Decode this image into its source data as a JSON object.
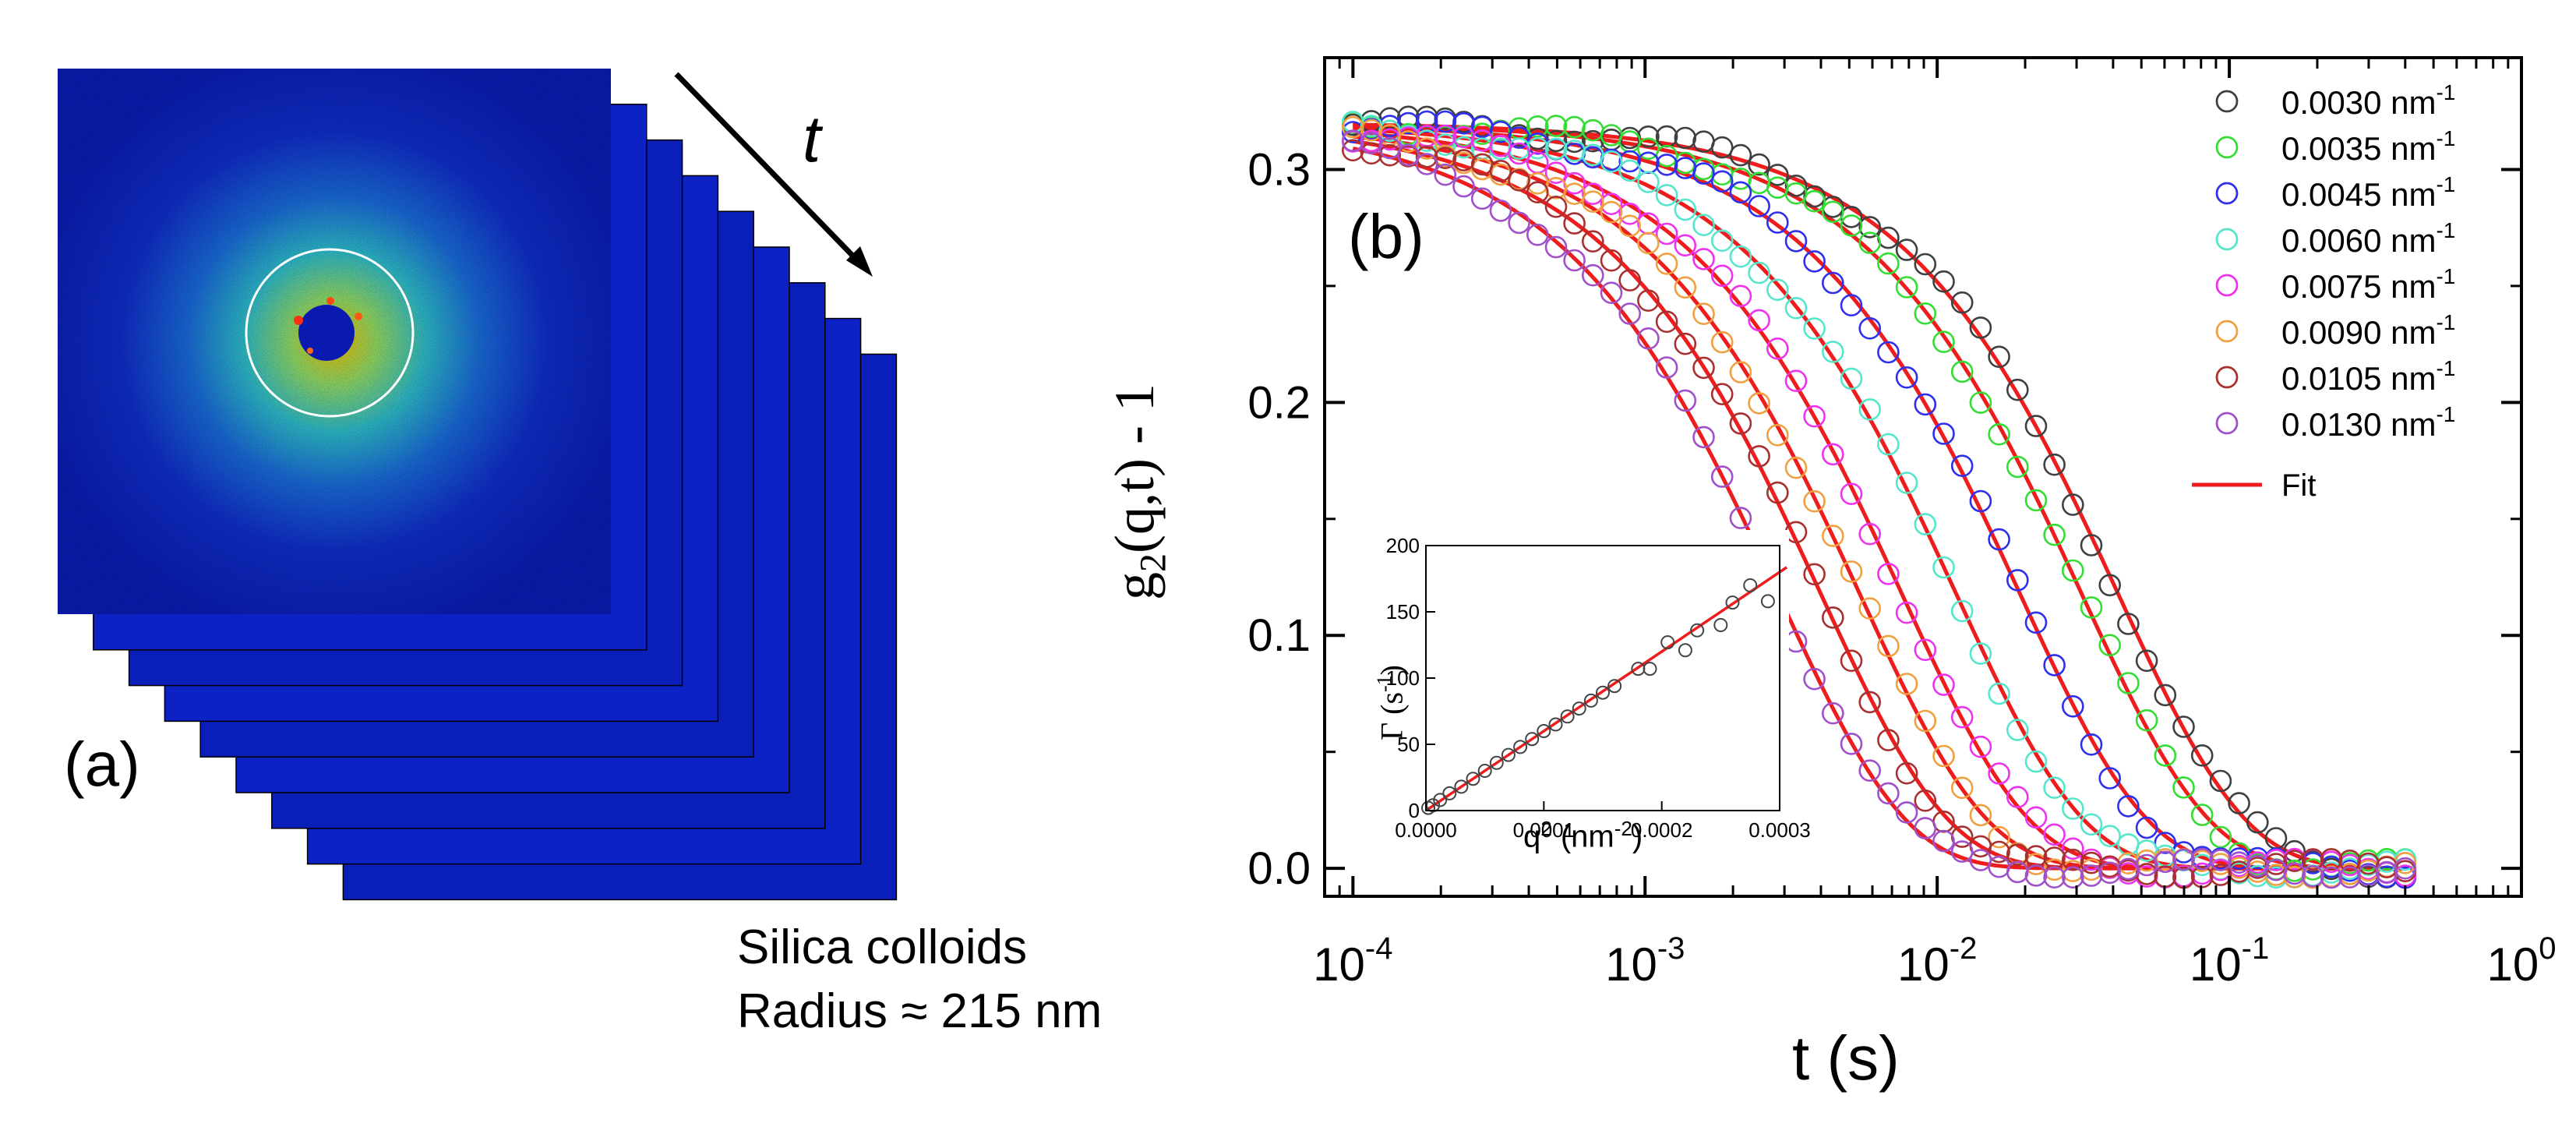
{
  "panel_a": {
    "label": "(a)",
    "arrow_label": "t",
    "caption_line1": "Silica colloids",
    "caption_line2": "Radius ≈ 215 nm"
  },
  "chart_data": [
    {
      "type": "scatter",
      "panel_label": "(b)",
      "ylabel": "g2(q,t) - 1",
      "ylabel_main": "g",
      "ylabel_sub": "2",
      "ylabel_rest": "(q,t) - 1",
      "xlabel": "t (s)",
      "xscale": "log",
      "xlim": [
        8e-05,
        1
      ],
      "ylim": [
        -0.012,
        0.348
      ],
      "x_ticks": [
        {
          "value": 0.0001,
          "base": "10",
          "exp": "-4"
        },
        {
          "value": 0.001,
          "base": "10",
          "exp": "-3"
        },
        {
          "value": 0.01,
          "base": "10",
          "exp": "-2"
        },
        {
          "value": 0.1,
          "base": "10",
          "exp": "-1"
        },
        {
          "value": 1,
          "base": "10",
          "exp": "0"
        }
      ],
      "y_ticks": [
        "0.0",
        "0.1",
        "0.2",
        "0.3"
      ],
      "y_tick_values": [
        0,
        0.1,
        0.2,
        0.3
      ],
      "grid": false,
      "legend_position": "top-right",
      "fit_label": "Fit",
      "fit_color": "#ee1c1c",
      "fit_model": "exponential",
      "beta": 0.32,
      "series": [
        {
          "name": "0.0030 nm-1",
          "q": "0.0030",
          "unit": "nm",
          "unit_exp": "-1",
          "gamma": 12,
          "color": "#404040"
        },
        {
          "name": "0.0035 nm-1",
          "q": "0.0035",
          "unit": "nm",
          "unit_exp": "-1",
          "gamma": 16,
          "color": "#33dd33"
        },
        {
          "name": "0.0045 nm-1",
          "q": "0.0045",
          "unit": "nm",
          "unit_exp": "-1",
          "gamma": 26,
          "color": "#2f2fee"
        },
        {
          "name": "0.0060 nm-1",
          "q": "0.0060",
          "unit": "nm",
          "unit_exp": "-1",
          "gamma": 43,
          "color": "#55e6cc"
        },
        {
          "name": "0.0075 nm-1",
          "q": "0.0075",
          "unit": "nm",
          "unit_exp": "-1",
          "gamma": 66,
          "color": "#ee33ee"
        },
        {
          "name": "0.0090 nm-1",
          "q": "0.0090",
          "unit": "nm",
          "unit_exp": "-1",
          "gamma": 92,
          "color": "#f0a040"
        },
        {
          "name": "0.0105 nm-1",
          "q": "0.0105",
          "unit": "nm",
          "unit_exp": "-1",
          "gamma": 125,
          "color": "#a83030"
        },
        {
          "name": "0.0130 nm-1",
          "q": "0.0130",
          "unit": "nm",
          "unit_exp": "-1",
          "gamma": 175,
          "color": "#a050c8"
        }
      ]
    },
    {
      "type": "scatter",
      "inset": true,
      "xlabel": "q2 (nm-2)",
      "xlabel_main": "q",
      "xlabel_sup": "2",
      "xlabel_rest": " (nm",
      "xlabel_sup2": "-2",
      "xlabel_end": ")",
      "ylabel": "Γ (s-1)",
      "ylabel_main": "Γ (s",
      "ylabel_sup": "-1",
      "ylabel_end": ")",
      "xlim": [
        0,
        0.0003
      ],
      "ylim": [
        0,
        200
      ],
      "x_ticks": [
        "0.0000",
        "0.0001",
        "0.0002",
        "0.0003"
      ],
      "x_tick_values": [
        0,
        0.0001,
        0.0002,
        0.0003
      ],
      "y_ticks": [
        "0",
        "50",
        "100",
        "150",
        "200"
      ],
      "y_tick_values": [
        0,
        50,
        100,
        150,
        200
      ],
      "fit_slope": 600000,
      "points": [
        {
          "x": 2e-06,
          "y": 2
        },
        {
          "x": 6e-06,
          "y": 4
        },
        {
          "x": 1.2e-05,
          "y": 8
        },
        {
          "x": 2e-05,
          "y": 13
        },
        {
          "x": 3e-05,
          "y": 18
        },
        {
          "x": 4e-05,
          "y": 24
        },
        {
          "x": 5e-05,
          "y": 30
        },
        {
          "x": 6e-05,
          "y": 36
        },
        {
          "x": 7e-05,
          "y": 42
        },
        {
          "x": 8e-05,
          "y": 48
        },
        {
          "x": 9e-05,
          "y": 54
        },
        {
          "x": 0.0001,
          "y": 60
        },
        {
          "x": 0.00011,
          "y": 65
        },
        {
          "x": 0.00012,
          "y": 71
        },
        {
          "x": 0.00013,
          "y": 77
        },
        {
          "x": 0.00014,
          "y": 83
        },
        {
          "x": 0.00015,
          "y": 89
        },
        {
          "x": 0.00016,
          "y": 94
        },
        {
          "x": 0.00018,
          "y": 107
        },
        {
          "x": 0.00019,
          "y": 107
        },
        {
          "x": 0.000205,
          "y": 127
        },
        {
          "x": 0.00022,
          "y": 121
        },
        {
          "x": 0.00023,
          "y": 136
        },
        {
          "x": 0.00025,
          "y": 140
        },
        {
          "x": 0.00026,
          "y": 157
        },
        {
          "x": 0.000275,
          "y": 170
        },
        {
          "x": 0.00029,
          "y": 158
        }
      ]
    }
  ]
}
